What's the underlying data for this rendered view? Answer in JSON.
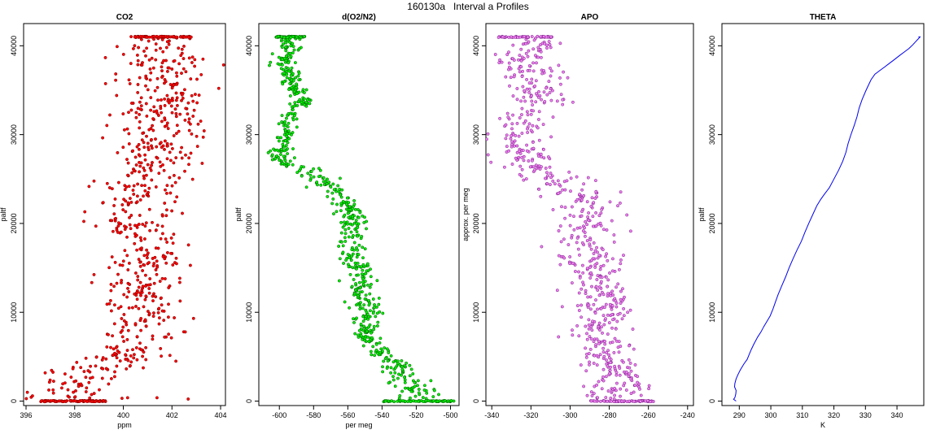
{
  "figure": {
    "title": "160130a   Interval a Profiles"
  },
  "chart_data": [
    {
      "type": "scatter",
      "title": "CO2",
      "xlabel": "ppm",
      "ylabel": "paltf",
      "xlim": [
        395.9,
        404.2
      ],
      "ylim": [
        -500,
        42500
      ],
      "xticks": [
        396,
        398,
        400,
        402,
        404
      ],
      "yticks": [
        0,
        10000,
        20000,
        30000,
        40000
      ],
      "fill_color": "#ff0000",
      "edge_color": "#7a0000",
      "profile": [
        [
          0,
          399.0,
          1.6
        ],
        [
          1000,
          397.6,
          1.0
        ],
        [
          2000,
          397.9,
          0.9
        ],
        [
          3000,
          398.4,
          0.9
        ],
        [
          4000,
          399.0,
          0.9
        ],
        [
          5000,
          399.8,
          0.9
        ],
        [
          6000,
          400.3,
          0.8
        ],
        [
          7000,
          400.7,
          0.8
        ],
        [
          8000,
          400.6,
          0.8
        ],
        [
          9000,
          400.8,
          0.8
        ],
        [
          10000,
          400.7,
          0.8
        ],
        [
          11000,
          400.5,
          0.8
        ],
        [
          12000,
          400.6,
          0.8
        ],
        [
          13000,
          400.6,
          0.8
        ],
        [
          14000,
          400.7,
          0.8
        ],
        [
          15000,
          400.8,
          0.8
        ],
        [
          16000,
          401.0,
          0.8
        ],
        [
          17000,
          401.0,
          0.8
        ],
        [
          18000,
          400.9,
          0.8
        ],
        [
          19000,
          400.6,
          0.8
        ],
        [
          20000,
          400.3,
          0.8
        ],
        [
          21000,
          400.4,
          0.8
        ],
        [
          22000,
          400.6,
          0.8
        ],
        [
          23000,
          400.7,
          0.8
        ],
        [
          24000,
          400.8,
          0.8
        ],
        [
          25000,
          401.2,
          0.8
        ],
        [
          26000,
          401.4,
          0.8
        ],
        [
          27000,
          401.6,
          0.9
        ],
        [
          28000,
          401.4,
          0.9
        ],
        [
          29000,
          401.3,
          0.9
        ],
        [
          30000,
          401.3,
          0.9
        ],
        [
          31000,
          401.5,
          0.9
        ],
        [
          32000,
          401.6,
          0.9
        ],
        [
          33000,
          401.7,
          0.9
        ],
        [
          34000,
          401.8,
          0.9
        ],
        [
          35000,
          401.8,
          0.9
        ],
        [
          36000,
          401.6,
          0.9
        ],
        [
          37000,
          401.7,
          0.9
        ],
        [
          38000,
          401.5,
          0.9
        ],
        [
          39000,
          401.6,
          0.9
        ],
        [
          40000,
          401.8,
          0.9
        ],
        [
          41000,
          401.6,
          1.0
        ]
      ],
      "levels": [
        {
          "y": 0,
          "x0": 396.6,
          "x1": 399.3,
          "count": 90
        },
        {
          "y": 41000,
          "x0": 400.3,
          "x1": 402.8,
          "count": 80
        }
      ],
      "n_points": 700
    },
    {
      "type": "scatter",
      "title": "d(O2/N2)",
      "xlabel": "per meg",
      "ylabel": "paltf",
      "xlim": [
        -612,
        -495
      ],
      "ylim": [
        -500,
        42500
      ],
      "xticks": [
        -600,
        -580,
        -560,
        -540,
        -520,
        -500
      ],
      "yticks": [
        0,
        10000,
        20000,
        30000,
        40000
      ],
      "fill_color": "#00ee00",
      "edge_color": "#005500",
      "profile": [
        [
          0,
          -523,
          8
        ],
        [
          1000,
          -520,
          6
        ],
        [
          2000,
          -523,
          6
        ],
        [
          3000,
          -528,
          5
        ],
        [
          4000,
          -531,
          5
        ],
        [
          5000,
          -540,
          4
        ],
        [
          6000,
          -542,
          4
        ],
        [
          7000,
          -548,
          4
        ],
        [
          8000,
          -550,
          4
        ],
        [
          9000,
          -549,
          4
        ],
        [
          10000,
          -547,
          4
        ],
        [
          11000,
          -548,
          4
        ],
        [
          12000,
          -553,
          4
        ],
        [
          13000,
          -554,
          4
        ],
        [
          14000,
          -551,
          4
        ],
        [
          15000,
          -552,
          4
        ],
        [
          16000,
          -557,
          4
        ],
        [
          17000,
          -556,
          4
        ],
        [
          18000,
          -560,
          4
        ],
        [
          19000,
          -557,
          4
        ],
        [
          20000,
          -555,
          4
        ],
        [
          21000,
          -557,
          4
        ],
        [
          22000,
          -560,
          4
        ],
        [
          23000,
          -563,
          4
        ],
        [
          24000,
          -570,
          4
        ],
        [
          25000,
          -578,
          4
        ],
        [
          26000,
          -585,
          4
        ],
        [
          27000,
          -600,
          4
        ],
        [
          28000,
          -599,
          3
        ],
        [
          29000,
          -597,
          3
        ],
        [
          30000,
          -597,
          3
        ],
        [
          31000,
          -596,
          3
        ],
        [
          32000,
          -594,
          3
        ],
        [
          33000,
          -590,
          3
        ],
        [
          34000,
          -585,
          3
        ],
        [
          35000,
          -590,
          3
        ],
        [
          36000,
          -593,
          3
        ],
        [
          37000,
          -593,
          3
        ],
        [
          38000,
          -598,
          3
        ],
        [
          39000,
          -596,
          3
        ],
        [
          40000,
          -593,
          3
        ],
        [
          41000,
          -596,
          3
        ]
      ],
      "levels": [
        {
          "y": 0,
          "x0": -540,
          "x1": -498,
          "count": 70
        },
        {
          "y": 41000,
          "x0": -602,
          "x1": -585,
          "count": 60
        }
      ],
      "n_points": 700
    },
    {
      "type": "scatter",
      "title": "APO",
      "xlabel": "",
      "ylabel": "approx. per meg",
      "xlim": [
        -343,
        -237
      ],
      "ylim": [
        -500,
        42500
      ],
      "xticks": [
        -340,
        -320,
        -300,
        -280,
        -260,
        -240
      ],
      "yticks": [
        0,
        10000,
        20000,
        30000,
        40000
      ],
      "fill_color": "#ee82ee",
      "edge_color": "#7a1a8a",
      "profile": [
        [
          0,
          -276,
          9
        ],
        [
          1000,
          -275,
          8
        ],
        [
          2000,
          -273,
          8
        ],
        [
          3000,
          -276,
          8
        ],
        [
          4000,
          -278,
          8
        ],
        [
          5000,
          -282,
          8
        ],
        [
          6000,
          -282,
          8
        ],
        [
          7000,
          -285,
          8
        ],
        [
          8000,
          -285,
          8
        ],
        [
          9000,
          -284,
          8
        ],
        [
          10000,
          -283,
          8
        ],
        [
          11000,
          -285,
          8
        ],
        [
          12000,
          -287,
          8
        ],
        [
          13000,
          -288,
          8
        ],
        [
          14000,
          -286,
          8
        ],
        [
          15000,
          -287,
          8
        ],
        [
          16000,
          -290,
          8
        ],
        [
          17000,
          -289,
          8
        ],
        [
          18000,
          -293,
          8
        ],
        [
          19000,
          -290,
          8
        ],
        [
          20000,
          -290,
          8
        ],
        [
          21000,
          -291,
          8
        ],
        [
          22000,
          -293,
          8
        ],
        [
          23000,
          -296,
          8
        ],
        [
          24000,
          -302,
          8
        ],
        [
          25000,
          -310,
          8
        ],
        [
          26000,
          -315,
          8
        ],
        [
          27000,
          -322,
          8
        ],
        [
          28000,
          -326,
          8
        ],
        [
          29000,
          -323,
          8
        ],
        [
          30000,
          -325,
          8
        ],
        [
          31000,
          -324,
          8
        ],
        [
          32000,
          -322,
          8
        ],
        [
          33000,
          -318,
          8
        ],
        [
          34000,
          -315,
          8
        ],
        [
          35000,
          -320,
          8
        ],
        [
          36000,
          -322,
          8
        ],
        [
          37000,
          -322,
          8
        ],
        [
          38000,
          -327,
          8
        ],
        [
          39000,
          -324,
          8
        ],
        [
          40000,
          -320,
          8
        ],
        [
          41000,
          -322,
          8
        ]
      ],
      "levels": [
        {
          "y": 0,
          "x0": -290,
          "x1": -257,
          "count": 70
        },
        {
          "y": 41000,
          "x0": -337,
          "x1": -309,
          "count": 60
        }
      ],
      "n_points": 700
    },
    {
      "type": "line",
      "title": "THETA",
      "xlabel": "K",
      "ylabel": "paltf",
      "xlim": [
        284.5,
        348.5
      ],
      "ylim": [
        -500,
        42500
      ],
      "xticks": [
        290,
        300,
        310,
        320,
        330,
        340
      ],
      "yticks": [
        0,
        10000,
        20000,
        30000,
        40000
      ],
      "line_color": "#0000ee",
      "x": [
        289.0,
        288.2,
        288.6,
        288.9,
        289.0,
        288.5,
        288.6,
        289.0,
        289.6,
        290.3,
        291.5,
        292.5,
        293.2,
        293.8,
        294.6,
        295.8,
        296.9,
        297.8,
        298.8,
        299.8,
        300.7,
        301.5,
        302.3,
        303.5,
        304.7,
        305.8,
        307.0,
        308.3,
        309.7,
        310.8,
        312.0,
        313.3,
        314.6,
        315.8,
        317.0,
        318.5,
        320.0,
        321.5,
        322.8,
        323.8,
        324.5,
        325.4,
        326.4,
        327.3,
        328.0,
        329.0,
        330.2,
        331.0,
        331.8,
        333.0,
        334.5,
        336.0,
        337.5,
        339.0,
        340.8,
        342.3,
        343.8,
        345.0,
        346.0,
        346.8,
        347.3,
        346.8
      ],
      "y": [
        0,
        200,
        400,
        800,
        1200,
        1600,
        2000,
        2500,
        3000,
        3500,
        4200,
        4700,
        5300,
        5800,
        6400,
        7200,
        7800,
        8400,
        9000,
        9600,
        10400,
        11200,
        12000,
        13000,
        14000,
        15000,
        16000,
        17000,
        18000,
        19000,
        20000,
        21000,
        22000,
        22700,
        23300,
        24000,
        25000,
        26000,
        27000,
        28000,
        29000,
        30000,
        31000,
        32000,
        33000,
        34000,
        35000,
        35600,
        36200,
        36800,
        37200,
        37600,
        38000,
        38400,
        38900,
        39300,
        39700,
        40100,
        40500,
        40800,
        41000,
        41000
      ]
    }
  ]
}
